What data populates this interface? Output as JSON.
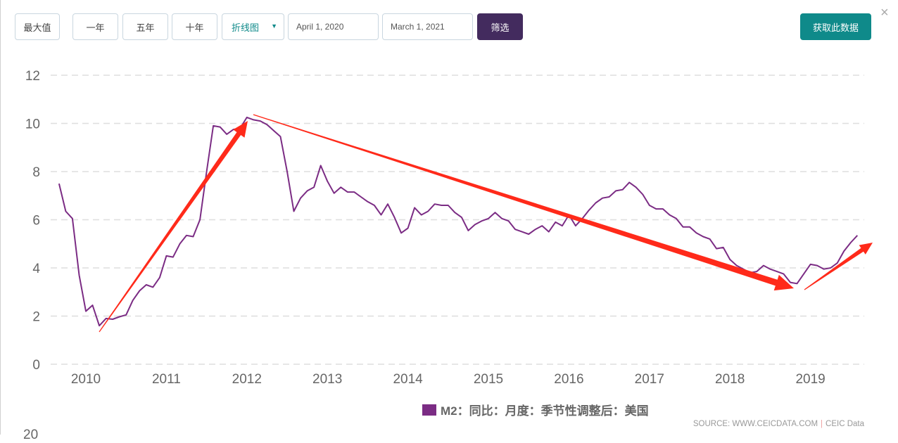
{
  "toolbar": {
    "range_buttons": [
      "最大值",
      "一年",
      "五年",
      "十年"
    ],
    "chart_type": "折线图",
    "start_date": "April 1, 2020",
    "end_date": "March 1, 2021",
    "filter_label": "筛选",
    "get_data_label": "获取此数据",
    "close_icon": "×"
  },
  "colors": {
    "series": "#7b2c84",
    "filter": "#432b5e",
    "get_data": "#0f8a8a",
    "annotation": "#ff2a1a"
  },
  "next_chart_top_label": "20",
  "chart_data": {
    "type": "line",
    "title": "",
    "xlabel": "",
    "ylabel": "",
    "ylim": [
      0,
      12
    ],
    "yticks": [
      "0",
      "2",
      "4",
      "6",
      "8",
      "10",
      "12"
    ],
    "xticks": [
      "2010",
      "2011",
      "2012",
      "2013",
      "2014",
      "2015",
      "2016",
      "2017",
      "2018",
      "2019"
    ],
    "grid": true,
    "legend": "bottom-center",
    "start_month": "2009-09",
    "frequency": "monthly",
    "series": [
      {
        "name": "M2：同比：月度：季节性调整后：美国",
        "values": [
          7.5,
          6.35,
          6.05,
          3.7,
          2.2,
          2.45,
          1.6,
          1.9,
          1.87,
          1.97,
          2.05,
          2.65,
          3.05,
          3.3,
          3.2,
          3.6,
          4.5,
          4.45,
          5.0,
          5.35,
          5.3,
          6.0,
          8.0,
          9.9,
          9.85,
          9.55,
          9.75,
          9.8,
          10.25,
          10.15,
          10.1,
          9.95,
          9.7,
          9.45,
          8.0,
          6.35,
          6.9,
          7.2,
          7.35,
          8.25,
          7.6,
          7.1,
          7.35,
          7.15,
          7.15,
          6.95,
          6.75,
          6.6,
          6.2,
          6.65,
          6.1,
          5.45,
          5.65,
          6.5,
          6.2,
          6.35,
          6.65,
          6.6,
          6.6,
          6.3,
          6.1,
          5.55,
          5.8,
          5.95,
          6.05,
          6.3,
          6.05,
          5.95,
          5.6,
          5.5,
          5.4,
          5.6,
          5.75,
          5.5,
          5.9,
          5.75,
          6.2,
          5.75,
          6.05,
          6.4,
          6.7,
          6.9,
          6.95,
          7.2,
          7.25,
          7.55,
          7.35,
          7.05,
          6.6,
          6.45,
          6.45,
          6.2,
          6.05,
          5.7,
          5.7,
          5.45,
          5.3,
          5.2,
          4.8,
          4.85,
          4.35,
          4.1,
          3.95,
          3.8,
          3.85,
          4.1,
          3.95,
          3.85,
          3.75,
          3.4,
          3.35,
          3.75,
          4.15,
          4.1,
          3.95,
          4.0,
          4.2,
          4.7,
          5.05,
          5.35
        ]
      }
    ],
    "source": "SOURCE: WWW.CEICDATA.COM",
    "source_brand": "CEIC Data"
  }
}
